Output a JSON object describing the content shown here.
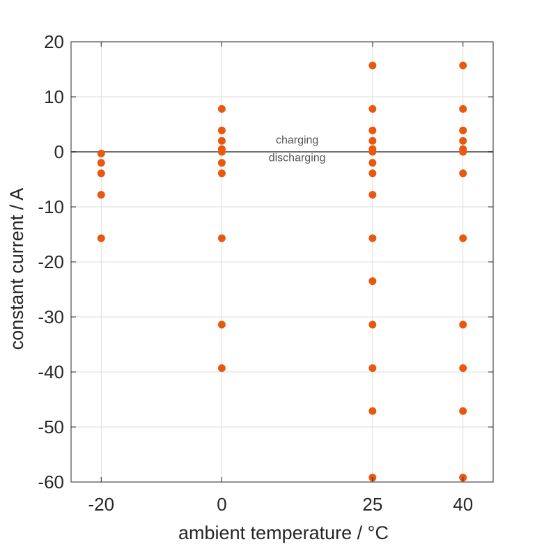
{
  "chart_data": {
    "type": "scatter",
    "xlabel": "ambient temperature / °C",
    "ylabel": "constant current / A",
    "xlim": [
      -25,
      45
    ],
    "ylim": [
      -60,
      20
    ],
    "xticks": [
      -20,
      0,
      25,
      40
    ],
    "yticks": [
      20,
      10,
      0,
      -10,
      -20,
      -30,
      -40,
      -50,
      -60
    ],
    "grid": true,
    "marker_color": "#e8580e",
    "reference_line": {
      "y": 0,
      "color": "#707070"
    },
    "annotations": [
      {
        "text": "charging",
        "x": 12.5,
        "y": 1.5
      },
      {
        "text": "discharging",
        "x": 12.5,
        "y": -1.7
      }
    ],
    "points": [
      {
        "x": -20,
        "y": -0.3
      },
      {
        "x": -20,
        "y": -2
      },
      {
        "x": -20,
        "y": -3.9
      },
      {
        "x": -20,
        "y": -7.8
      },
      {
        "x": -20,
        "y": -15.7
      },
      {
        "x": 0,
        "y": 7.8
      },
      {
        "x": 0,
        "y": 3.9
      },
      {
        "x": 0,
        "y": 2
      },
      {
        "x": 0,
        "y": 0.5
      },
      {
        "x": 0,
        "y": 0
      },
      {
        "x": 0,
        "y": -2
      },
      {
        "x": 0,
        "y": -3.9
      },
      {
        "x": 0,
        "y": -15.7
      },
      {
        "x": 0,
        "y": -31.4
      },
      {
        "x": 0,
        "y": -39.3
      },
      {
        "x": 25,
        "y": 15.7
      },
      {
        "x": 25,
        "y": 7.8
      },
      {
        "x": 25,
        "y": 3.9
      },
      {
        "x": 25,
        "y": 2
      },
      {
        "x": 25,
        "y": 0.5
      },
      {
        "x": 25,
        "y": 0
      },
      {
        "x": 25,
        "y": -2
      },
      {
        "x": 25,
        "y": -3.9
      },
      {
        "x": 25,
        "y": -7.8
      },
      {
        "x": 25,
        "y": -15.7
      },
      {
        "x": 25,
        "y": -23.5
      },
      {
        "x": 25,
        "y": -31.4
      },
      {
        "x": 25,
        "y": -39.3
      },
      {
        "x": 25,
        "y": -47.1
      },
      {
        "x": 25,
        "y": -59.2
      },
      {
        "x": 40,
        "y": 15.7
      },
      {
        "x": 40,
        "y": 7.8
      },
      {
        "x": 40,
        "y": 3.9
      },
      {
        "x": 40,
        "y": 2
      },
      {
        "x": 40,
        "y": 0.5
      },
      {
        "x": 40,
        "y": 0
      },
      {
        "x": 40,
        "y": -3.9
      },
      {
        "x": 40,
        "y": -15.7
      },
      {
        "x": 40,
        "y": -31.4
      },
      {
        "x": 40,
        "y": -39.3
      },
      {
        "x": 40,
        "y": -47.1
      },
      {
        "x": 40,
        "y": -59.2
      }
    ]
  }
}
